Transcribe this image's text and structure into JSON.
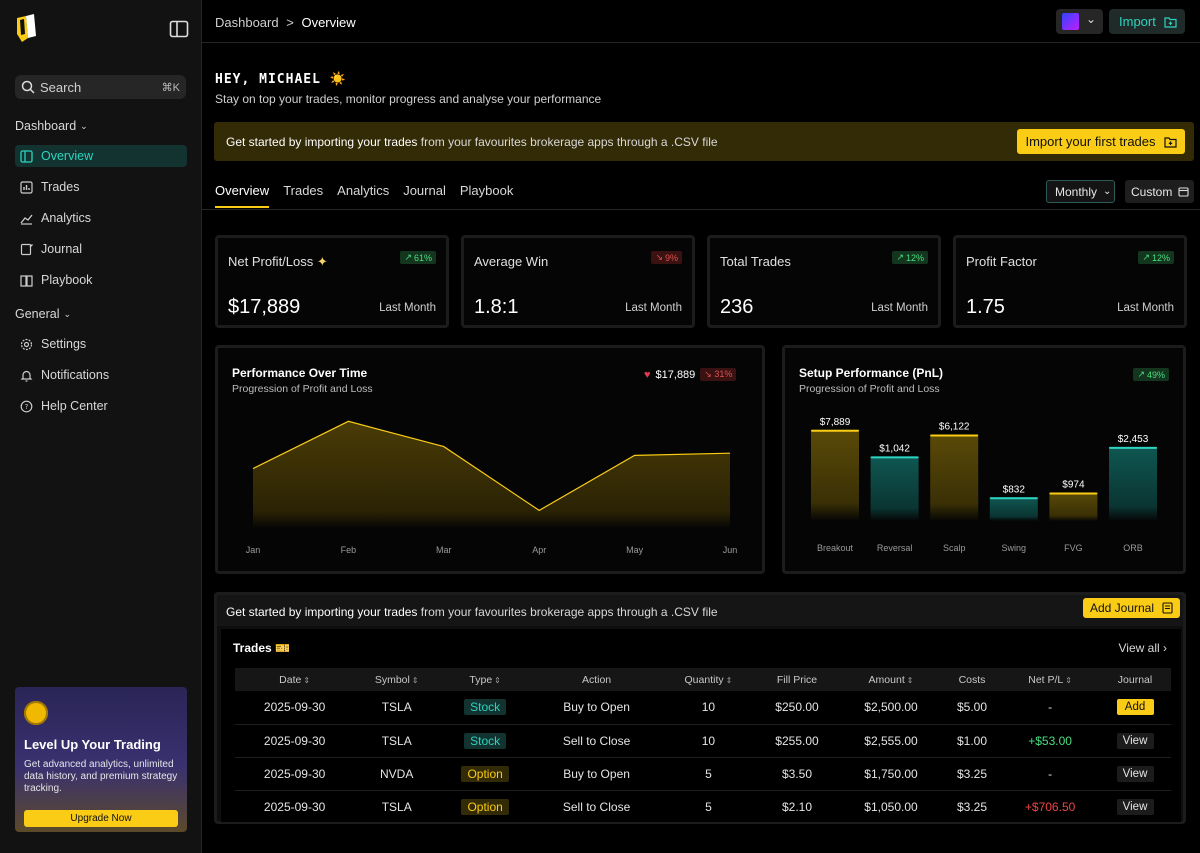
{
  "sidebar": {
    "search_label": "Search",
    "search_shortcut": "⌘K",
    "group_dashboard": "Dashboard",
    "group_general": "General",
    "items": [
      {
        "label": "Overview",
        "icon": "layout-icon",
        "active": true
      },
      {
        "label": "Trades",
        "icon": "bar-chart-icon"
      },
      {
        "label": "Analytics",
        "icon": "trend-icon"
      },
      {
        "label": "Journal",
        "icon": "journal-icon"
      },
      {
        "label": "Playbook",
        "icon": "book-icon"
      }
    ],
    "general_items": [
      {
        "label": "Settings",
        "icon": "gear-icon"
      },
      {
        "label": "Notifications",
        "icon": "bell-icon"
      },
      {
        "label": "Help Center",
        "icon": "help-icon"
      }
    ],
    "promo": {
      "title": "Level Up Your Trading",
      "text": "Get advanced analytics, unlimited data history, and premium strategy tracking.",
      "button": "Upgrade Now"
    }
  },
  "header": {
    "breadcrumb_root": "Dashboard",
    "breadcrumb_sep": ">",
    "breadcrumb_current": "Overview",
    "import_label": "Import"
  },
  "greeting": {
    "title": "HEY, MICHAEL ☀️",
    "subtitle": "Stay on top your trades, monitor progress and analyse your performance"
  },
  "banner": {
    "bold": "Get started by importing your trades",
    "rest": " from your favourites brokerage apps through a .CSV file",
    "button": "Import your first trades"
  },
  "tabs": [
    "Overview",
    "Trades",
    "Analytics",
    "Journal",
    "Playbook"
  ],
  "period": {
    "selected": "Monthly",
    "custom": "Custom"
  },
  "kpis": [
    {
      "label": "Net Profit/Loss",
      "value": "$17,889",
      "period": "Last Month",
      "change": "61%",
      "trend": "up"
    },
    {
      "label": "Average Win",
      "value": "1.8:1",
      "period": "Last Month",
      "change": "9%",
      "trend": "down"
    },
    {
      "label": "Total Trades",
      "value": "236",
      "period": "Last Month",
      "change": "12%",
      "trend": "up"
    },
    {
      "label": "Profit Factor",
      "value": "1.75",
      "period": "Last Month",
      "change": "12%",
      "trend": "up"
    }
  ],
  "performance": {
    "title": "Performance Over Time",
    "subtitle": "Progression of Profit and Loss",
    "total": "$17,889",
    "change": "31%"
  },
  "setup": {
    "title": "Setup Performance (PnL)",
    "subtitle": "Progression of Profit and Loss",
    "change": "49%"
  },
  "chart_data": [
    {
      "type": "area",
      "categories": [
        "Jan",
        "Feb",
        "Mar",
        "Apr",
        "May",
        "Jun"
      ],
      "values": [
        0.54,
        0.97,
        0.74,
        0.16,
        0.66,
        0.68
      ],
      "color": "#facc15"
    },
    {
      "type": "bar",
      "categories": [
        "Breakout",
        "Reversal",
        "Scalp",
        "Swing",
        "FVG",
        "ORB"
      ],
      "values": [
        7889,
        1042,
        6122,
        832,
        974,
        2453
      ],
      "labels": [
        "$7,889",
        "$1,042",
        "$6,122",
        "$832",
        "$974",
        "$2,453"
      ],
      "colors": [
        "#facc15",
        "#2dd4bf",
        "#facc15",
        "#2dd4bf",
        "#facc15",
        "#2dd4bf"
      ],
      "relative_heights": [
        0.96,
        0.68,
        0.91,
        0.25,
        0.3,
        0.78
      ]
    }
  ],
  "trades_section": {
    "banner_bold": "Get started by importing your trades",
    "banner_rest": " from your favourites brokerage apps through a .CSV file",
    "add_journal": "Add Journal",
    "title": "Trades 🎫",
    "view_all": "View all",
    "columns": [
      "Date",
      "Symbol",
      "Type",
      "Action",
      "Quantity",
      "Fill Price",
      "Amount",
      "Costs",
      "Net P/L",
      "Journal"
    ],
    "rows": [
      {
        "date": "2025-09-30",
        "symbol": "TSLA",
        "type": "Stock",
        "action": "Buy to Open",
        "qty": "10",
        "fill": "$250.00",
        "amount": "$2,500.00",
        "costs": "$5.00",
        "pnl": "-",
        "journal": "Add"
      },
      {
        "date": "2025-09-30",
        "symbol": "TSLA",
        "type": "Stock",
        "action": "Sell to Close",
        "qty": "10",
        "fill": "$255.00",
        "amount": "$2,555.00",
        "costs": "$1.00",
        "pnl": "+$53.00",
        "journal": "View"
      },
      {
        "date": "2025-09-30",
        "symbol": "NVDA",
        "type": "Option",
        "action": "Buy to Open",
        "qty": "5",
        "fill": "$3.50",
        "amount": "$1,750.00",
        "costs": "$3.25",
        "pnl": "-",
        "journal": "View"
      },
      {
        "date": "2025-09-30",
        "symbol": "TSLA",
        "type": "Option",
        "action": "Sell to Close",
        "qty": "5",
        "fill": "$2.10",
        "amount": "$1,050.00",
        "costs": "$3.25",
        "pnl": "+$706.50",
        "journal": "View"
      }
    ]
  }
}
